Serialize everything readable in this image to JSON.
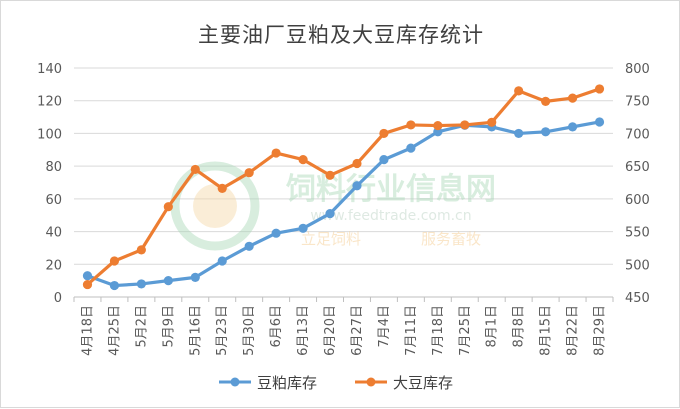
{
  "chart_data": {
    "type": "line",
    "title": "主要油厂豆粕及大豆库存统计",
    "categories": [
      "4月18日",
      "4月25日",
      "5月2日",
      "5月9日",
      "5月16日",
      "5月23日",
      "5月30日",
      "6月6日",
      "6月13日",
      "6月20日",
      "6月27日",
      "7月4日",
      "7月11日",
      "7月18日",
      "7月25日",
      "8月1日",
      "8月8日",
      "8月15日",
      "8月22日",
      "8月29日"
    ],
    "y_left": {
      "min": 0,
      "max": 140,
      "ticks": [
        "0",
        "20",
        "40",
        "60",
        "80",
        "100",
        "120",
        "140"
      ]
    },
    "y_right": {
      "min": 450,
      "max": 800,
      "ticks": [
        "450",
        "500",
        "550",
        "600",
        "650",
        "700",
        "750",
        "800"
      ]
    },
    "series": [
      {
        "name": "豆粕库存",
        "axis": "left",
        "color": "#5B9BD5",
        "values": [
          13,
          7,
          8,
          10,
          12,
          22,
          31,
          39,
          42,
          51,
          68,
          84,
          91,
          101,
          105,
          104,
          100,
          101,
          104,
          107
        ]
      },
      {
        "name": "大豆库存",
        "axis": "right",
        "color": "#ED7D31",
        "values": [
          469,
          505,
          522,
          588,
          645,
          616,
          640,
          670,
          660,
          636,
          654,
          700,
          713,
          712,
          713,
          717,
          765,
          749,
          754,
          768
        ]
      }
    ],
    "grid": true,
    "legend_position": "bottom"
  },
  "watermark": {
    "cn_name": "饲料行业信息网",
    "url": "www.feedtrade.com.cn",
    "slogan_left": "立足饲料",
    "slogan_right": "服务畜牧"
  }
}
